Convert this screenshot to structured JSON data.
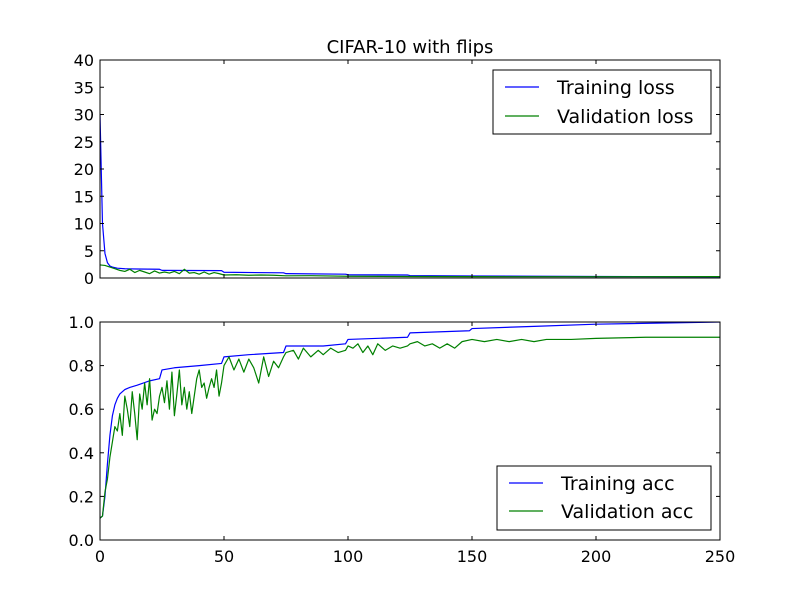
{
  "chart_data": [
    {
      "type": "line",
      "title": "CIFAR-10 with flips",
      "xlabel": "",
      "ylabel": "",
      "xlim": [
        0,
        250
      ],
      "ylim": [
        0,
        40
      ],
      "yticks": [
        0,
        5,
        10,
        15,
        20,
        25,
        30,
        35,
        40
      ],
      "xticks_labeled": false,
      "grid": false,
      "legend_position": "top-right",
      "series": [
        {
          "name": "Training loss",
          "color": "#0000ff",
          "points": [
            [
              0,
              30
            ],
            [
              1,
              10
            ],
            [
              2,
              4.5
            ],
            [
              3,
              2.8
            ],
            [
              4,
              2.2
            ],
            [
              5,
              2.0
            ],
            [
              7,
              1.8
            ],
            [
              10,
              1.7
            ],
            [
              15,
              1.65
            ],
            [
              24,
              1.6
            ],
            [
              25,
              1.4
            ],
            [
              49,
              1.35
            ],
            [
              50,
              1.05
            ],
            [
              74,
              0.95
            ],
            [
              75,
              0.8
            ],
            [
              99,
              0.7
            ],
            [
              100,
              0.6
            ],
            [
              124,
              0.55
            ],
            [
              125,
              0.45
            ],
            [
              150,
              0.38
            ],
            [
              175,
              0.32
            ],
            [
              200,
              0.28
            ],
            [
              250,
              0.22
            ]
          ]
        },
        {
          "name": "Validation loss",
          "color": "#008000",
          "points": [
            [
              0,
              2.4
            ],
            [
              2,
              2.3
            ],
            [
              4,
              2.0
            ],
            [
              6,
              1.7
            ],
            [
              8,
              1.4
            ],
            [
              10,
              1.2
            ],
            [
              12,
              1.6
            ],
            [
              14,
              1.0
            ],
            [
              16,
              1.4
            ],
            [
              18,
              1.1
            ],
            [
              20,
              0.8
            ],
            [
              22,
              1.3
            ],
            [
              24,
              0.9
            ],
            [
              26,
              1.1
            ],
            [
              28,
              0.9
            ],
            [
              30,
              1.2
            ],
            [
              32,
              0.8
            ],
            [
              34,
              1.6
            ],
            [
              36,
              0.9
            ],
            [
              38,
              1.0
            ],
            [
              40,
              0.7
            ],
            [
              42,
              1.1
            ],
            [
              44,
              0.7
            ],
            [
              46,
              1.0
            ],
            [
              48,
              0.8
            ],
            [
              50,
              0.55
            ],
            [
              55,
              0.6
            ],
            [
              60,
              0.5
            ],
            [
              65,
              0.55
            ],
            [
              70,
              0.5
            ],
            [
              75,
              0.4
            ],
            [
              85,
              0.42
            ],
            [
              100,
              0.32
            ],
            [
              125,
              0.28
            ],
            [
              150,
              0.25
            ],
            [
              175,
              0.24
            ],
            [
              200,
              0.24
            ],
            [
              250,
              0.25
            ]
          ]
        }
      ]
    },
    {
      "type": "line",
      "title": "",
      "xlabel": "",
      "ylabel": "",
      "xlim": [
        0,
        250
      ],
      "ylim": [
        0,
        1
      ],
      "xticks": [
        0,
        50,
        100,
        150,
        200,
        250
      ],
      "yticks": [
        0.0,
        0.2,
        0.4,
        0.6,
        0.8,
        1.0
      ],
      "grid": false,
      "legend_position": "bottom-right",
      "series": [
        {
          "name": "Training acc",
          "color": "#0000ff",
          "points": [
            [
              0,
              0.1
            ],
            [
              1,
              0.11
            ],
            [
              2,
              0.2
            ],
            [
              3,
              0.35
            ],
            [
              4,
              0.48
            ],
            [
              5,
              0.57
            ],
            [
              6,
              0.62
            ],
            [
              7,
              0.65
            ],
            [
              8,
              0.67
            ],
            [
              10,
              0.69
            ],
            [
              12,
              0.7
            ],
            [
              15,
              0.71
            ],
            [
              20,
              0.73
            ],
            [
              24,
              0.74
            ],
            [
              25,
              0.78
            ],
            [
              30,
              0.79
            ],
            [
              40,
              0.8
            ],
            [
              49,
              0.81
            ],
            [
              50,
              0.84
            ],
            [
              60,
              0.85
            ],
            [
              74,
              0.86
            ],
            [
              75,
              0.89
            ],
            [
              90,
              0.89
            ],
            [
              99,
              0.9
            ],
            [
              100,
              0.92
            ],
            [
              124,
              0.93
            ],
            [
              125,
              0.95
            ],
            [
              149,
              0.96
            ],
            [
              150,
              0.97
            ],
            [
              175,
              0.98
            ],
            [
              200,
              0.99
            ],
            [
              250,
              1.0
            ]
          ]
        },
        {
          "name": "Validation acc",
          "color": "#008000",
          "points": [
            [
              0,
              0.1
            ],
            [
              1,
              0.11
            ],
            [
              2,
              0.22
            ],
            [
              3,
              0.28
            ],
            [
              4,
              0.38
            ],
            [
              5,
              0.45
            ],
            [
              6,
              0.52
            ],
            [
              7,
              0.5
            ],
            [
              8,
              0.58
            ],
            [
              9,
              0.48
            ],
            [
              10,
              0.66
            ],
            [
              11,
              0.6
            ],
            [
              12,
              0.52
            ],
            [
              13,
              0.68
            ],
            [
              14,
              0.58
            ],
            [
              15,
              0.46
            ],
            [
              16,
              0.67
            ],
            [
              17,
              0.6
            ],
            [
              18,
              0.72
            ],
            [
              19,
              0.62
            ],
            [
              20,
              0.74
            ],
            [
              21,
              0.55
            ],
            [
              22,
              0.6
            ],
            [
              23,
              0.58
            ],
            [
              24,
              0.66
            ],
            [
              25,
              0.7
            ],
            [
              26,
              0.63
            ],
            [
              27,
              0.73
            ],
            [
              28,
              0.6
            ],
            [
              29,
              0.77
            ],
            [
              30,
              0.57
            ],
            [
              31,
              0.67
            ],
            [
              32,
              0.78
            ],
            [
              33,
              0.62
            ],
            [
              34,
              0.7
            ],
            [
              35,
              0.6
            ],
            [
              36,
              0.68
            ],
            [
              37,
              0.58
            ],
            [
              38,
              0.66
            ],
            [
              39,
              0.74
            ],
            [
              40,
              0.78
            ],
            [
              41,
              0.7
            ],
            [
              42,
              0.72
            ],
            [
              43,
              0.65
            ],
            [
              44,
              0.7
            ],
            [
              45,
              0.74
            ],
            [
              46,
              0.7
            ],
            [
              47,
              0.78
            ],
            [
              48,
              0.66
            ],
            [
              49,
              0.72
            ],
            [
              50,
              0.8
            ],
            [
              52,
              0.84
            ],
            [
              54,
              0.78
            ],
            [
              56,
              0.83
            ],
            [
              58,
              0.77
            ],
            [
              60,
              0.83
            ],
            [
              62,
              0.79
            ],
            [
              64,
              0.72
            ],
            [
              66,
              0.84
            ],
            [
              68,
              0.75
            ],
            [
              70,
              0.82
            ],
            [
              72,
              0.79
            ],
            [
              74,
              0.84
            ],
            [
              75,
              0.86
            ],
            [
              78,
              0.87
            ],
            [
              80,
              0.83
            ],
            [
              82,
              0.88
            ],
            [
              85,
              0.84
            ],
            [
              88,
              0.87
            ],
            [
              90,
              0.85
            ],
            [
              93,
              0.88
            ],
            [
              96,
              0.86
            ],
            [
              99,
              0.87
            ],
            [
              100,
              0.89
            ],
            [
              102,
              0.88
            ],
            [
              104,
              0.9
            ],
            [
              106,
              0.86
            ],
            [
              108,
              0.89
            ],
            [
              110,
              0.85
            ],
            [
              112,
              0.9
            ],
            [
              115,
              0.87
            ],
            [
              118,
              0.89
            ],
            [
              121,
              0.88
            ],
            [
              124,
              0.89
            ],
            [
              125,
              0.9
            ],
            [
              128,
              0.91
            ],
            [
              131,
              0.89
            ],
            [
              134,
              0.9
            ],
            [
              137,
              0.88
            ],
            [
              140,
              0.9
            ],
            [
              143,
              0.88
            ],
            [
              146,
              0.91
            ],
            [
              150,
              0.92
            ],
            [
              155,
              0.91
            ],
            [
              160,
              0.92
            ],
            [
              165,
              0.91
            ],
            [
              170,
              0.92
            ],
            [
              175,
              0.91
            ],
            [
              180,
              0.92
            ],
            [
              190,
              0.92
            ],
            [
              200,
              0.925
            ],
            [
              220,
              0.93
            ],
            [
              240,
              0.93
            ],
            [
              250,
              0.93
            ]
          ]
        }
      ]
    }
  ]
}
